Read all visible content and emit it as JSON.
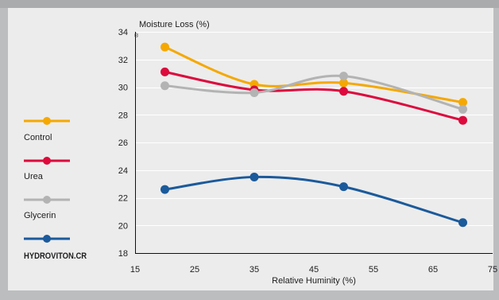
{
  "chart_data": {
    "type": "line",
    "smooth": true,
    "ylabel": "Moisture Loss (%)",
    "ylabel_mark": "®",
    "xlabel": "Relative Huminity (%)",
    "xlim": [
      15,
      75
    ],
    "ylim": [
      18,
      34
    ],
    "x_ticks": [
      15,
      25,
      35,
      45,
      55,
      65,
      75
    ],
    "y_ticks": [
      34,
      32,
      30,
      28,
      26,
      24,
      22,
      20,
      18
    ],
    "grid": true,
    "legend_position": "left",
    "x": [
      20,
      35,
      50,
      70
    ],
    "series": [
      {
        "name": "Control",
        "color": "#f5a800",
        "values": [
          32.9,
          30.2,
          30.3,
          28.9
        ]
      },
      {
        "name": "Urea",
        "color": "#dc0a3d",
        "values": [
          31.1,
          29.8,
          29.7,
          27.6
        ]
      },
      {
        "name": "Glycerin",
        "color": "#b3b3b3",
        "values": [
          30.1,
          29.6,
          30.8,
          28.4
        ]
      },
      {
        "name": "HYDROVITON.CR",
        "color": "#1b5a9b",
        "values": [
          22.6,
          23.5,
          22.8,
          20.2
        ]
      }
    ]
  }
}
